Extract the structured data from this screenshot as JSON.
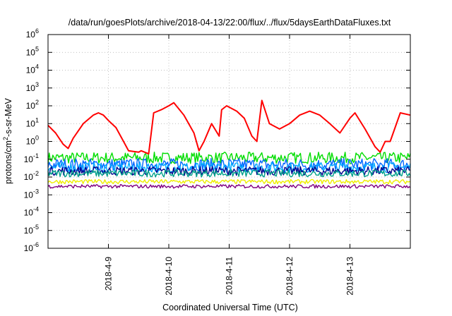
{
  "chart_data": {
    "type": "line",
    "title": "/data/run/goesPlots/archive/2018-04-13/22:00/flux/../flux/5daysEarthDataFluxes.txt",
    "xlabel": "Coordinated Universal Time (UTC)",
    "ylabel": {
      "prefix": "protons/cm",
      "sup": "2",
      "suffix": "-s-sr-MeV"
    },
    "y_scale": "log",
    "ylim": [
      1e-06,
      1000000.0
    ],
    "y_ticks": [
      {
        "value": 1000000.0,
        "base": "10",
        "exp": "6"
      },
      {
        "value": 100000.0,
        "base": "10",
        "exp": "5"
      },
      {
        "value": 10000.0,
        "base": "10",
        "exp": "4"
      },
      {
        "value": 1000.0,
        "base": "10",
        "exp": "3"
      },
      {
        "value": 100.0,
        "base": "10",
        "exp": "2"
      },
      {
        "value": 10.0,
        "base": "10",
        "exp": "1"
      },
      {
        "value": 1.0,
        "base": "10",
        "exp": "0"
      },
      {
        "value": 0.1,
        "base": "10",
        "exp": "-1"
      },
      {
        "value": 0.01,
        "base": "10",
        "exp": "-2"
      },
      {
        "value": 0.001,
        "base": "10",
        "exp": "-3"
      },
      {
        "value": 0.0001,
        "base": "10",
        "exp": "-4"
      },
      {
        "value": 1e-05,
        "base": "10",
        "exp": "-5"
      },
      {
        "value": 1e-06,
        "base": "10",
        "exp": "-6"
      }
    ],
    "xlim": [
      "2018-04-08T00:00",
      "2018-04-14T00:00"
    ],
    "x_ticks": [
      {
        "value": "2018-04-09T00:00",
        "label": "2018-4-9"
      },
      {
        "value": "2018-04-10T00:00",
        "label": "2018-4-10"
      },
      {
        "value": "2018-04-11T00:00",
        "label": "2018-4-11"
      },
      {
        "value": "2018-04-12T00:00",
        "label": "2018-4-12"
      },
      {
        "value": "2018-04-13T00:00",
        "label": "2018-4-13"
      }
    ],
    "grid": true,
    "legend": "none",
    "series": [
      {
        "color": "#ff0000",
        "style": "thick",
        "x": [
          "2018-04-08T00:00",
          "2018-04-08T03:00",
          "2018-04-08T06:00",
          "2018-04-08T08:00",
          "2018-04-08T10:00",
          "2018-04-08T14:00",
          "2018-04-08T18:00",
          "2018-04-08T20:00",
          "2018-04-08T22:00",
          "2018-04-09T00:00",
          "2018-04-09T03:00",
          "2018-04-09T06:00",
          "2018-04-09T08:00",
          "2018-04-09T12:00",
          "2018-04-09T13:00",
          "2018-04-09T16:00",
          "2018-04-09T18:00",
          "2018-04-09T21:00",
          "2018-04-10T00:00",
          "2018-04-10T02:00",
          "2018-04-10T06:00",
          "2018-04-10T10:00",
          "2018-04-10T12:00",
          "2018-04-10T14:00",
          "2018-04-10T17:00",
          "2018-04-10T20:00",
          "2018-04-10T21:00",
          "2018-04-10T23:00",
          "2018-04-11T03:00",
          "2018-04-11T06:00",
          "2018-04-11T09:00",
          "2018-04-11T11:00",
          "2018-04-11T13:00",
          "2018-04-11T16:00",
          "2018-04-11T20:00",
          "2018-04-12T00:00",
          "2018-04-12T04:00",
          "2018-04-12T08:00",
          "2018-04-12T12:00",
          "2018-04-12T16:00",
          "2018-04-12T20:00",
          "2018-04-13T00:00",
          "2018-04-13T02:00",
          "2018-04-13T06:00",
          "2018-04-13T10:00",
          "2018-04-13T12:00",
          "2018-04-13T14:00",
          "2018-04-13T16:00",
          "2018-04-13T20:00",
          "2018-04-14T00:00"
        ],
        "y": [
          8,
          3,
          0.7,
          0.4,
          1.5,
          10,
          30,
          40,
          30,
          15,
          6,
          1,
          0.3,
          0.25,
          0.3,
          0.2,
          40,
          60,
          100,
          150,
          30,
          3,
          0.3,
          1,
          10,
          2,
          60,
          100,
          50,
          20,
          2,
          1,
          200,
          10,
          5,
          10,
          30,
          50,
          30,
          10,
          3,
          20,
          40,
          5,
          0.5,
          0.25,
          1,
          1,
          40,
          30
        ]
      },
      {
        "color": "#00dd00",
        "baseline": 0.12,
        "noise": 0.32
      },
      {
        "color": "#0066ff",
        "baseline": 0.05,
        "noise": 0.35
      },
      {
        "color": "#00aaff",
        "baseline": 0.035,
        "noise": 0.3
      },
      {
        "color": "#00008b",
        "baseline": 0.022,
        "noise": 0.25
      },
      {
        "color": "#00a08a",
        "baseline": 0.016,
        "noise": 0.2
      },
      {
        "color": "#eeee00",
        "baseline": 0.0055,
        "noise": 0.12
      },
      {
        "color": "#800080",
        "baseline": 0.003,
        "noise": 0.1
      }
    ]
  }
}
